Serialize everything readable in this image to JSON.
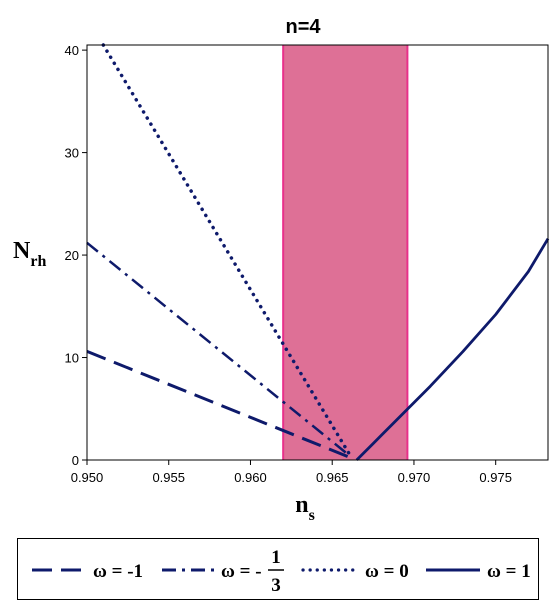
{
  "chart_data": {
    "type": "line",
    "title": "n=4",
    "xlabel": "n",
    "xlabel_sub": "s",
    "ylabel": "N",
    "ylabel_sub": "rh",
    "xlim": [
      0.95,
      0.9782
    ],
    "ylim": [
      0,
      40.5
    ],
    "x_ticks": [
      "0.950",
      "0.955",
      "0.960",
      "0.965",
      "0.970",
      "0.975"
    ],
    "x_tick_values": [
      0.95,
      0.955,
      0.96,
      0.965,
      0.97,
      0.975
    ],
    "y_ticks": [
      "0",
      "10",
      "20",
      "30",
      "40"
    ],
    "y_tick_values": [
      0,
      10,
      20,
      30,
      40
    ],
    "band": {
      "x0": 0.962,
      "x1": 0.9696,
      "color": "#de7096",
      "edge_color": "#e8308a"
    },
    "line_color": "#0e1a6b",
    "series": [
      {
        "style": "dashed",
        "x": [
          0.95,
          0.966
        ],
        "y": [
          10.6,
          0.3
        ]
      },
      {
        "style": "dashdot",
        "x": [
          0.95,
          0.966
        ],
        "y": [
          21.2,
          0.5
        ]
      },
      {
        "style": "dotted",
        "x": [
          0.951,
          0.966
        ],
        "y": [
          40.5,
          0.7
        ]
      },
      {
        "style": "solid",
        "x": [
          0.9665,
          0.9675,
          0.969,
          0.971,
          0.973,
          0.975,
          0.977,
          0.9782
        ],
        "y": [
          0.0,
          1.6,
          4.0,
          7.2,
          10.6,
          14.2,
          18.4,
          21.6
        ]
      }
    ],
    "legend": [
      {
        "label": "ω = -1",
        "style": "dashed"
      },
      {
        "label_prefix": "ω = -",
        "numerator": "1",
        "denominator": "3",
        "style": "dashdot"
      },
      {
        "label": "ω = 0",
        "style": "dotted"
      },
      {
        "label": "ω = 1",
        "style": "solid"
      }
    ]
  }
}
